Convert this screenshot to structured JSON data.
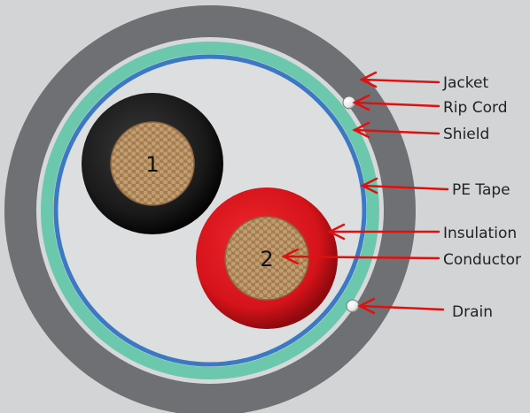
{
  "colors": {
    "background": "#d3d4d6",
    "jacket": "#6f7073",
    "inner_gap": "#d7d8da",
    "shield": "#6cc8ad",
    "pe_tape": "#3b7ac3",
    "core_fill": "#dddee0",
    "conductor_1_insulation": "#1c1c1c",
    "conductor_2_insulation": "#d7141c",
    "copper": "#a07a50",
    "arrow": "#e01010",
    "rip_cord": "#f4f4f4"
  },
  "conductors": [
    {
      "number": "1",
      "insulation": "black"
    },
    {
      "number": "2",
      "insulation": "red"
    }
  ],
  "labels": {
    "jacket": "Jacket",
    "rip_cord": "Rip Cord",
    "shield": "Shield",
    "pe_tape": "PE Tape",
    "insulation": "Insulation",
    "conductor": "Conductor",
    "drain": "Drain"
  }
}
